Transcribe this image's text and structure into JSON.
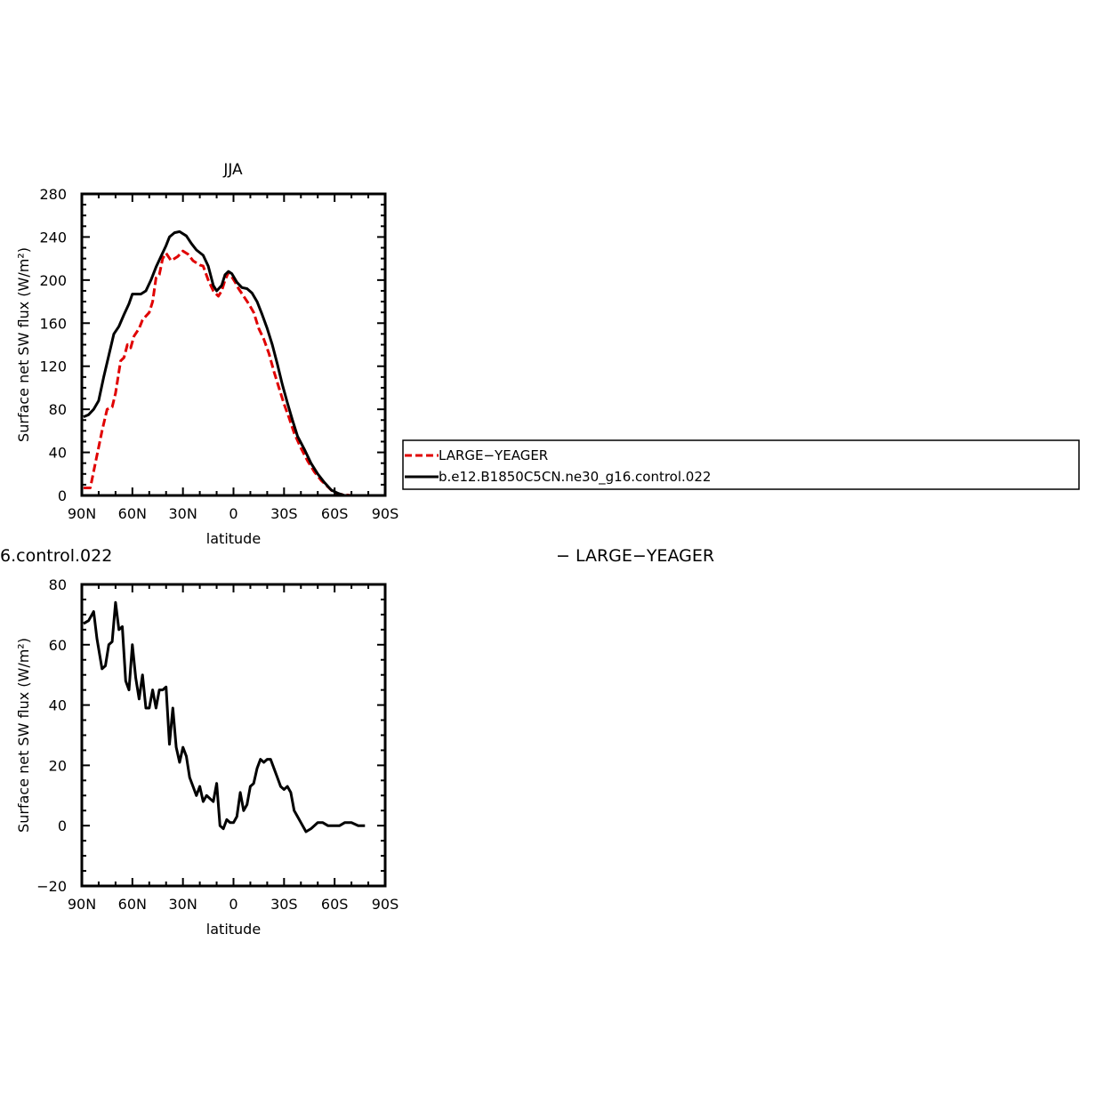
{
  "top_panel": {
    "title": "JJA"
  },
  "bottom_panel": {
    "title_left": "6.control.022",
    "title_right": "− LARGE−YEAGER"
  },
  "legend": {
    "items": [
      {
        "label": "LARGE−YEAGER",
        "color": "#e00000",
        "style": "dashed"
      },
      {
        "label": "b.e12.B1850C5CN.ne30_g16.control.022",
        "color": "#000000",
        "style": "solid"
      }
    ]
  },
  "chart_data": [
    {
      "type": "line",
      "title": "JJA",
      "xlabel": "latitude",
      "ylabel": "Surface net SW flux (W/m²)",
      "xlim": [
        90,
        -90
      ],
      "ylim": [
        0,
        280
      ],
      "xticks": [
        90,
        60,
        30,
        0,
        -30,
        -60,
        -90
      ],
      "xtick_labels": [
        "90N",
        "60N",
        "30N",
        "0",
        "30S",
        "60S",
        "90S"
      ],
      "yticks": [
        0,
        40,
        80,
        120,
        160,
        200,
        240,
        280
      ],
      "series": [
        {
          "name": "LARGE−YEAGER",
          "color": "#e00000",
          "dash": "dashed",
          "points": [
            [
              89,
              7
            ],
            [
              85,
              7
            ],
            [
              82,
              30
            ],
            [
              78,
              60
            ],
            [
              75,
              80
            ],
            [
              72,
              82
            ],
            [
              70,
              95
            ],
            [
              67,
              125
            ],
            [
              65,
              128
            ],
            [
              63,
              140
            ],
            [
              61,
              137
            ],
            [
              59,
              148
            ],
            [
              56,
              155
            ],
            [
              54,
              163
            ],
            [
              50,
              170
            ],
            [
              48,
              180
            ],
            [
              46,
              202
            ],
            [
              44,
              205
            ],
            [
              42,
              220
            ],
            [
              40,
              225
            ],
            [
              37,
              218
            ],
            [
              33,
              222
            ],
            [
              30,
              227
            ],
            [
              27,
              224
            ],
            [
              24,
              218
            ],
            [
              20,
              214
            ],
            [
              18,
              213
            ],
            [
              15,
              200
            ],
            [
              12,
              190
            ],
            [
              9,
              185
            ],
            [
              7,
              190
            ],
            [
              5,
              200
            ],
            [
              3,
              207
            ],
            [
              1,
              203
            ],
            [
              -1,
              198
            ],
            [
              -3,
              192
            ],
            [
              -6,
              185
            ],
            [
              -9,
              178
            ],
            [
              -12,
              170
            ],
            [
              -15,
              155
            ],
            [
              -18,
              145
            ],
            [
              -21,
              132
            ],
            [
              -24,
              115
            ],
            [
              -27,
              100
            ],
            [
              -30,
              85
            ],
            [
              -33,
              72
            ],
            [
              -36,
              58
            ],
            [
              -40,
              44
            ],
            [
              -44,
              32
            ],
            [
              -48,
              22
            ],
            [
              -52,
              14
            ],
            [
              -56,
              8
            ],
            [
              -60,
              2
            ],
            [
              -64,
              1
            ],
            [
              -70,
              0
            ],
            [
              -80,
              0
            ],
            [
              -90,
              0
            ]
          ]
        },
        {
          "name": "b.e12.B1850C5CN.ne30_g16.control.022",
          "color": "#000000",
          "dash": "solid",
          "points": [
            [
              89,
              73
            ],
            [
              86,
              75
            ],
            [
              83,
              80
            ],
            [
              80,
              88
            ],
            [
              77,
              110
            ],
            [
              74,
              130
            ],
            [
              71,
              150
            ],
            [
              68,
              157
            ],
            [
              65,
              168
            ],
            [
              62,
              178
            ],
            [
              60,
              187
            ],
            [
              58,
              187
            ],
            [
              55,
              187
            ],
            [
              52,
              190
            ],
            [
              49,
              200
            ],
            [
              46,
              212
            ],
            [
              43,
              222
            ],
            [
              40,
              232
            ],
            [
              38,
              240
            ],
            [
              35,
              244
            ],
            [
              32,
              245
            ],
            [
              28,
              241
            ],
            [
              25,
              234
            ],
            [
              22,
              228
            ],
            [
              18,
              223
            ],
            [
              15,
              213
            ],
            [
              12,
              195
            ],
            [
              10,
              190
            ],
            [
              7,
              195
            ],
            [
              5,
              205
            ],
            [
              3,
              208
            ],
            [
              1,
              206
            ],
            [
              -2,
              198
            ],
            [
              -5,
              193
            ],
            [
              -8,
              192
            ],
            [
              -11,
              188
            ],
            [
              -14,
              180
            ],
            [
              -17,
              168
            ],
            [
              -20,
              155
            ],
            [
              -23,
              140
            ],
            [
              -26,
              122
            ],
            [
              -29,
              103
            ],
            [
              -32,
              86
            ],
            [
              -35,
              70
            ],
            [
              -38,
              55
            ],
            [
              -42,
              43
            ],
            [
              -46,
              30
            ],
            [
              -50,
              20
            ],
            [
              -54,
              12
            ],
            [
              -58,
              5
            ],
            [
              -62,
              2
            ],
            [
              -66,
              0
            ],
            [
              -72,
              0
            ],
            [
              -80,
              0
            ],
            [
              -90,
              0
            ]
          ]
        }
      ]
    },
    {
      "type": "line",
      "title": "6.control.022  − LARGE−YEAGER",
      "xlabel": "latitude",
      "ylabel": "Surface net SW flux (W/m²)",
      "xlim": [
        90,
        -90
      ],
      "ylim": [
        -20,
        80
      ],
      "xticks": [
        90,
        60,
        30,
        0,
        -30,
        -60,
        -90
      ],
      "xtick_labels": [
        "90N",
        "60N",
        "30N",
        "0",
        "30S",
        "60S",
        "90S"
      ],
      "yticks": [
        -20,
        0,
        20,
        40,
        60,
        80
      ],
      "series": [
        {
          "name": "",
          "color": "#000000",
          "dash": "solid",
          "points": [
            [
              89,
              67
            ],
            [
              86,
              68
            ],
            [
              83,
              71
            ],
            [
              81,
              62
            ],
            [
              78,
              52
            ],
            [
              76,
              53
            ],
            [
              74,
              60
            ],
            [
              72,
              61
            ],
            [
              70,
              74
            ],
            [
              68,
              65
            ],
            [
              66,
              66
            ],
            [
              64,
              48
            ],
            [
              62,
              45
            ],
            [
              60,
              60
            ],
            [
              58,
              49
            ],
            [
              56,
              42
            ],
            [
              54,
              50
            ],
            [
              52,
              39
            ],
            [
              50,
              39
            ],
            [
              48,
              45
            ],
            [
              46,
              39
            ],
            [
              44,
              45
            ],
            [
              42,
              45
            ],
            [
              40,
              46
            ],
            [
              38,
              27
            ],
            [
              36,
              39
            ],
            [
              34,
              26
            ],
            [
              32,
              21
            ],
            [
              30,
              26
            ],
            [
              28,
              23
            ],
            [
              26,
              16
            ],
            [
              24,
              13
            ],
            [
              22,
              10
            ],
            [
              20,
              13
            ],
            [
              18,
              8
            ],
            [
              16,
              10
            ],
            [
              14,
              9
            ],
            [
              12,
              8
            ],
            [
              10,
              14
            ],
            [
              8,
              0
            ],
            [
              6,
              -1
            ],
            [
              4,
              2
            ],
            [
              2,
              1
            ],
            [
              0,
              1
            ],
            [
              -2,
              3
            ],
            [
              -4,
              11
            ],
            [
              -6,
              5
            ],
            [
              -8,
              7
            ],
            [
              -10,
              13
            ],
            [
              -12,
              14
            ],
            [
              -14,
              19
            ],
            [
              -16,
              22
            ],
            [
              -18,
              21
            ],
            [
              -20,
              22
            ],
            [
              -22,
              22
            ],
            [
              -24,
              19
            ],
            [
              -26,
              16
            ],
            [
              -28,
              13
            ],
            [
              -30,
              12
            ],
            [
              -32,
              13
            ],
            [
              -34,
              11
            ],
            [
              -36,
              5
            ],
            [
              -38,
              3
            ],
            [
              -40,
              1
            ],
            [
              -43,
              -2
            ],
            [
              -46,
              -1
            ],
            [
              -48,
              0
            ],
            [
              -50,
              1
            ],
            [
              -53,
              1
            ],
            [
              -56,
              0
            ],
            [
              -58,
              0
            ],
            [
              -60,
              0
            ],
            [
              -63,
              0
            ],
            [
              -66,
              1
            ],
            [
              -70,
              1
            ],
            [
              -74,
              0
            ],
            [
              -78,
              0
            ]
          ]
        }
      ]
    }
  ]
}
